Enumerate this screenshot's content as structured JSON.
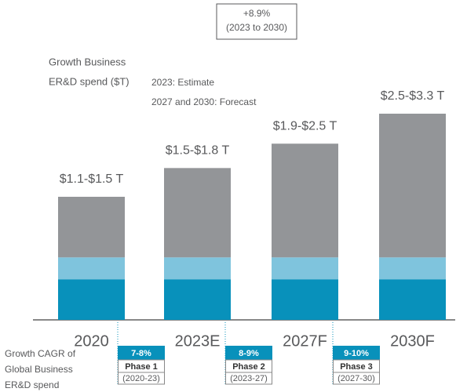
{
  "chart_data": {
    "type": "stacked_bar",
    "cagr_box": [
      "+8.9%",
      "(2023 to 2030)"
    ],
    "y_label": [
      "Growth Business",
      "ER&D spend ($T)"
    ],
    "notes": [
      "2023: Estimate",
      "2027 and 2030: Forecast"
    ],
    "categories": [
      "2020",
      "2023E",
      "2027F",
      "2030F"
    ],
    "bar_labels": [
      "$1.1-$1.5 T",
      "$1.5-$1.8 T",
      "$1.9-$2.5 T",
      "$2.5-$3.3 T"
    ],
    "series": [
      {
        "color": "#0891bb",
        "values": [
          0.65,
          0.65,
          0.65,
          0.65
        ]
      },
      {
        "color": "#7fc4dd",
        "values": [
          0.35,
          0.35,
          0.35,
          0.35
        ]
      },
      {
        "color": "#939598",
        "values": [
          0.97,
          1.43,
          1.82,
          2.3
        ]
      }
    ],
    "ylim": [
      0,
      3.3
    ],
    "cagr_label": [
      "Growth CAGR of",
      "Global Business",
      "ER&D spend"
    ],
    "phases": [
      {
        "rate": "7-8%",
        "name": "Phase 1",
        "period": "(2020-23)"
      },
      {
        "rate": "8-9%",
        "name": "Phase 2",
        "period": "(2023-27)"
      },
      {
        "rate": "9-10%",
        "name": "Phase 3",
        "period": "(2027-30)"
      }
    ]
  }
}
